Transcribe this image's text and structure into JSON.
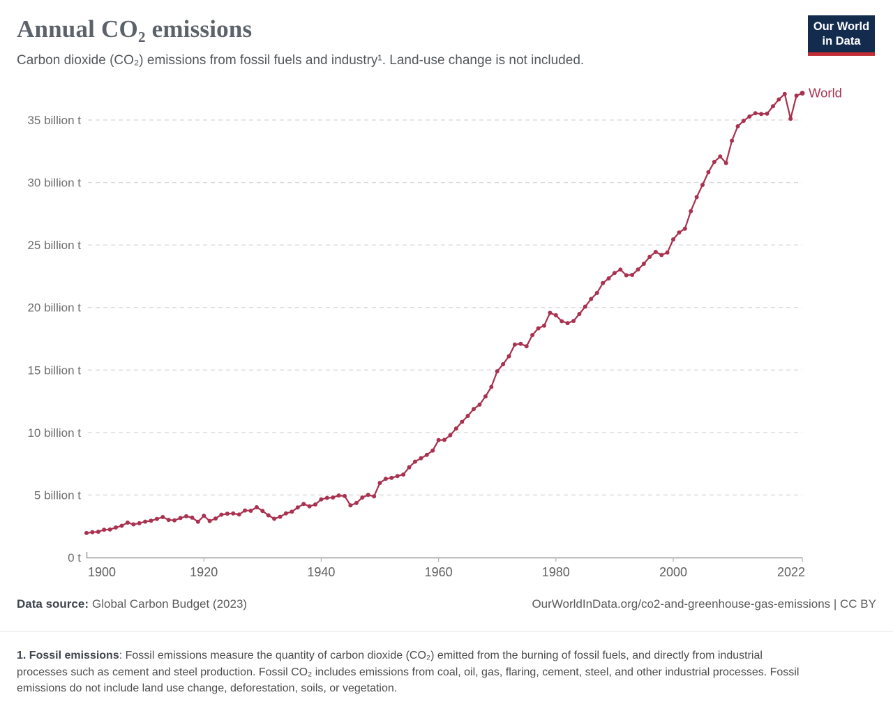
{
  "header": {
    "title": "Annual CO₂ emissions",
    "subtitle": "Carbon dioxide (CO₂) emissions from fossil fuels and industry¹. Land-use change is not included.",
    "logo_line1": "Our World",
    "logo_line2": "in Data"
  },
  "colors": {
    "series_line": "#a83250",
    "logo_background": "#132c4e",
    "logo_red_bar": "#c22d35",
    "gridline": "#d8d8d8",
    "axis_line": "#9a9a9a",
    "y_tick_label": "#6e6e6e",
    "x_tick_label": "#5f5f5f",
    "title_text": "#5b6269",
    "footer_text": "#5b5b5b"
  },
  "chart_data": {
    "type": "line",
    "title": "Annual CO₂ emissions",
    "subtitle": "Carbon dioxide (CO₂) emissions from fossil fuels and industry¹. Land-use change is not included.",
    "xlabel": "",
    "ylabel": "",
    "xlim": [
      1900,
      2022
    ],
    "ylim": [
      0,
      37.5
    ],
    "grid": "horizontal-dashed",
    "legend_position": "end-of-line-label",
    "xticks": [
      1900,
      1920,
      1940,
      1960,
      1980,
      2000,
      2022
    ],
    "yticks": [
      {
        "value": 0,
        "label": "0 t"
      },
      {
        "value": 5,
        "label": "5 billion t"
      },
      {
        "value": 10,
        "label": "10 billion t"
      },
      {
        "value": 15,
        "label": "15 billion t"
      },
      {
        "value": 20,
        "label": "20 billion t"
      },
      {
        "value": 25,
        "label": "25 billion t"
      },
      {
        "value": 30,
        "label": "30 billion t"
      },
      {
        "value": 35,
        "label": "35 billion t"
      }
    ],
    "unit": "billion tonnes CO₂",
    "series": [
      {
        "name": "World",
        "color": "#a83250",
        "years": [
          1900,
          1901,
          1902,
          1903,
          1904,
          1905,
          1906,
          1907,
          1908,
          1909,
          1910,
          1911,
          1912,
          1913,
          1914,
          1915,
          1916,
          1917,
          1918,
          1919,
          1920,
          1921,
          1922,
          1923,
          1924,
          1925,
          1926,
          1927,
          1928,
          1929,
          1930,
          1931,
          1932,
          1933,
          1934,
          1935,
          1936,
          1937,
          1938,
          1939,
          1940,
          1941,
          1942,
          1943,
          1944,
          1945,
          1946,
          1947,
          1948,
          1949,
          1950,
          1951,
          1952,
          1953,
          1954,
          1955,
          1956,
          1957,
          1958,
          1959,
          1960,
          1961,
          1962,
          1963,
          1964,
          1965,
          1966,
          1967,
          1968,
          1969,
          1970,
          1971,
          1972,
          1973,
          1974,
          1975,
          1976,
          1977,
          1978,
          1979,
          1980,
          1981,
          1982,
          1983,
          1984,
          1985,
          1986,
          1987,
          1988,
          1989,
          1990,
          1991,
          1992,
          1993,
          1994,
          1995,
          1996,
          1997,
          1998,
          1999,
          2000,
          2001,
          2002,
          2003,
          2004,
          2005,
          2006,
          2007,
          2008,
          2009,
          2010,
          2011,
          2012,
          2013,
          2014,
          2015,
          2016,
          2017,
          2018,
          2019,
          2020,
          2021,
          2022
        ],
        "values": [
          1.96,
          2.02,
          2.06,
          2.22,
          2.24,
          2.4,
          2.54,
          2.79,
          2.65,
          2.74,
          2.87,
          2.94,
          3.08,
          3.24,
          3.01,
          2.97,
          3.16,
          3.3,
          3.19,
          2.86,
          3.33,
          2.92,
          3.12,
          3.43,
          3.5,
          3.52,
          3.44,
          3.76,
          3.74,
          4.02,
          3.73,
          3.38,
          3.1,
          3.26,
          3.53,
          3.66,
          4.0,
          4.28,
          4.1,
          4.24,
          4.65,
          4.77,
          4.8,
          4.96,
          4.92,
          4.17,
          4.36,
          4.8,
          5.01,
          4.89,
          5.97,
          6.29,
          6.37,
          6.52,
          6.64,
          7.22,
          7.67,
          7.94,
          8.21,
          8.55,
          9.39,
          9.41,
          9.78,
          10.32,
          10.85,
          11.33,
          11.88,
          12.23,
          12.89,
          13.65,
          14.9,
          15.46,
          16.1,
          17.03,
          17.1,
          16.9,
          17.8,
          18.34,
          18.55,
          19.57,
          19.38,
          18.9,
          18.75,
          18.92,
          19.48,
          20.07,
          20.68,
          21.16,
          21.95,
          22.33,
          22.76,
          23.03,
          22.58,
          22.61,
          23.04,
          23.5,
          24.06,
          24.45,
          24.2,
          24.4,
          25.45,
          26.0,
          26.31,
          27.71,
          28.83,
          29.81,
          30.83,
          31.65,
          32.08,
          31.56,
          33.35,
          34.5,
          34.94,
          35.28,
          35.55,
          35.48,
          35.51,
          36.1,
          36.65,
          37.08,
          35.1,
          36.95,
          37.15
        ]
      }
    ]
  },
  "footer": {
    "source_label": "Data source:",
    "source_value": "Global Carbon Budget (2023)",
    "link": "OurWorldInData.org/co2-and-greenhouse-gas-emissions | CC BY",
    "note_bold": "1. Fossil emissions",
    "note_rest": ": Fossil emissions measure the quantity of carbon dioxide (CO₂) emitted from the burning of fossil fuels, and directly from industrial processes such as cement and steel production. Fossil CO₂ includes emissions from coal, oil, gas, flaring, cement, steel, and other industrial processes. Fossil emissions do not include land use change, deforestation, soils, or vegetation."
  }
}
